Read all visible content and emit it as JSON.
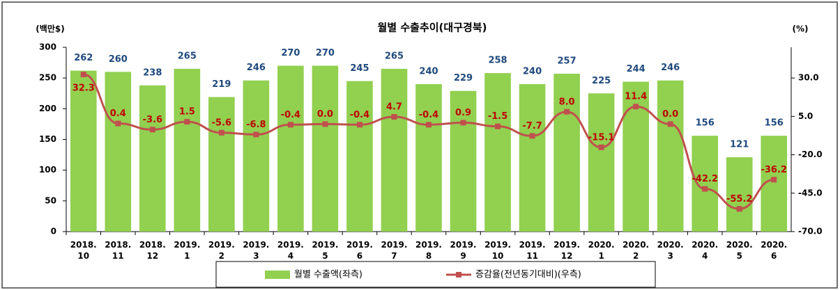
{
  "chart_data": {
    "type": "bar-line",
    "title": "월별 수출추이(대구경북)",
    "y_label": "(백만$)",
    "y2_label": "(%)",
    "categories": [
      "2018.\n10",
      "2018.\n11",
      "2018.\n12",
      "2019.\n1",
      "2019.\n2",
      "2019.\n3",
      "2019.\n4",
      "2019.\n5",
      "2019.\n6",
      "2019.\n7",
      "2019.\n8",
      "2019.\n9",
      "2019.\n10",
      "2019.\n11",
      "2019.\n12",
      "2020.\n1",
      "2020.\n2",
      "2020.\n3",
      "2020.\n4",
      "2020.\n5",
      "2020.\n6"
    ],
    "series": [
      {
        "name": "월별 수출액(좌측)",
        "type": "bar",
        "color": "#92d050",
        "label_color": "#1f497d",
        "values": [
          262,
          260,
          238,
          265,
          219,
          246,
          270,
          270,
          245,
          265,
          240,
          229,
          258,
          240,
          257,
          225,
          244,
          246,
          156,
          121,
          156
        ]
      },
      {
        "name": "증감율(전년동기대비)(우측)",
        "type": "line",
        "axis": "y2",
        "color": "#c0504d",
        "label_color": "#c00000",
        "values": [
          32.3,
          0.4,
          -3.6,
          1.5,
          -5.6,
          -6.8,
          -0.4,
          0.0,
          -0.4,
          4.7,
          -0.4,
          0.9,
          -1.5,
          -7.7,
          8.0,
          -15.1,
          11.4,
          0.0,
          -42.2,
          -55.2,
          -36.2
        ],
        "value_labels": [
          "32.3",
          "0.4",
          "-3.6",
          "1.5",
          "-5.6",
          "-6.8",
          "-0.4",
          "0.0",
          "-0.4",
          "4.7",
          "-0.4",
          "0.9",
          "-1.5",
          "-7.7",
          "8.0",
          "-15.1",
          "11.4",
          "0.0",
          "-42.2",
          "-55.2",
          "-36.2"
        ]
      }
    ],
    "ylim": [
      0,
      300
    ],
    "yticks": [
      0,
      50,
      100,
      150,
      200,
      250,
      300
    ],
    "y2lim": [
      -70,
      50
    ],
    "y2ticks": [
      {
        "value": -70,
        "label": "-70.0"
      },
      {
        "value": -45,
        "label": "-45.0"
      },
      {
        "value": -20,
        "label": "-20.0"
      },
      {
        "value": 5,
        "label": "5.0"
      },
      {
        "value": 30,
        "label": "30.0"
      }
    ],
    "legend": "bottom"
  }
}
